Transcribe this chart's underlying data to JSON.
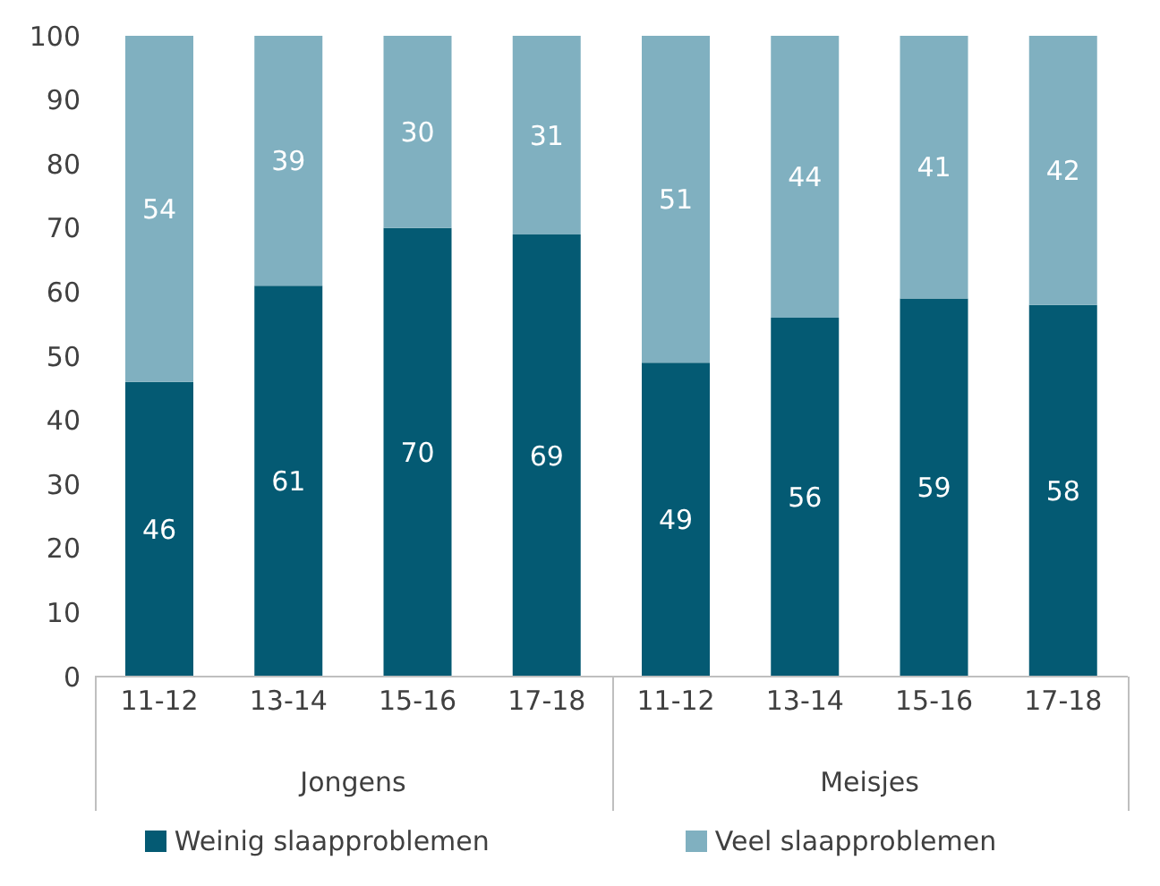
{
  "chart_data": {
    "type": "bar",
    "stacked": true,
    "categories": [
      "11-12",
      "13-14",
      "15-16",
      "17-18",
      "11-12",
      "13-14",
      "15-16",
      "17-18"
    ],
    "series": [
      {
        "name": "Weinig slaapproblemen",
        "color": "#045a73",
        "values": [
          46,
          61,
          70,
          69,
          49,
          56,
          59,
          58
        ]
      },
      {
        "name": "Veel slaapproblemen",
        "color": "#80b0c0",
        "values": [
          54,
          39,
          30,
          31,
          51,
          44,
          41,
          42
        ]
      }
    ],
    "ylim": [
      0,
      100
    ],
    "yticks": [
      0,
      10,
      20,
      30,
      40,
      50,
      60,
      70,
      80,
      90,
      100
    ],
    "grid": false,
    "legend": "bottom",
    "data_labels": true,
    "annotations": [
      "Jongens",
      "Meisjes"
    ]
  }
}
